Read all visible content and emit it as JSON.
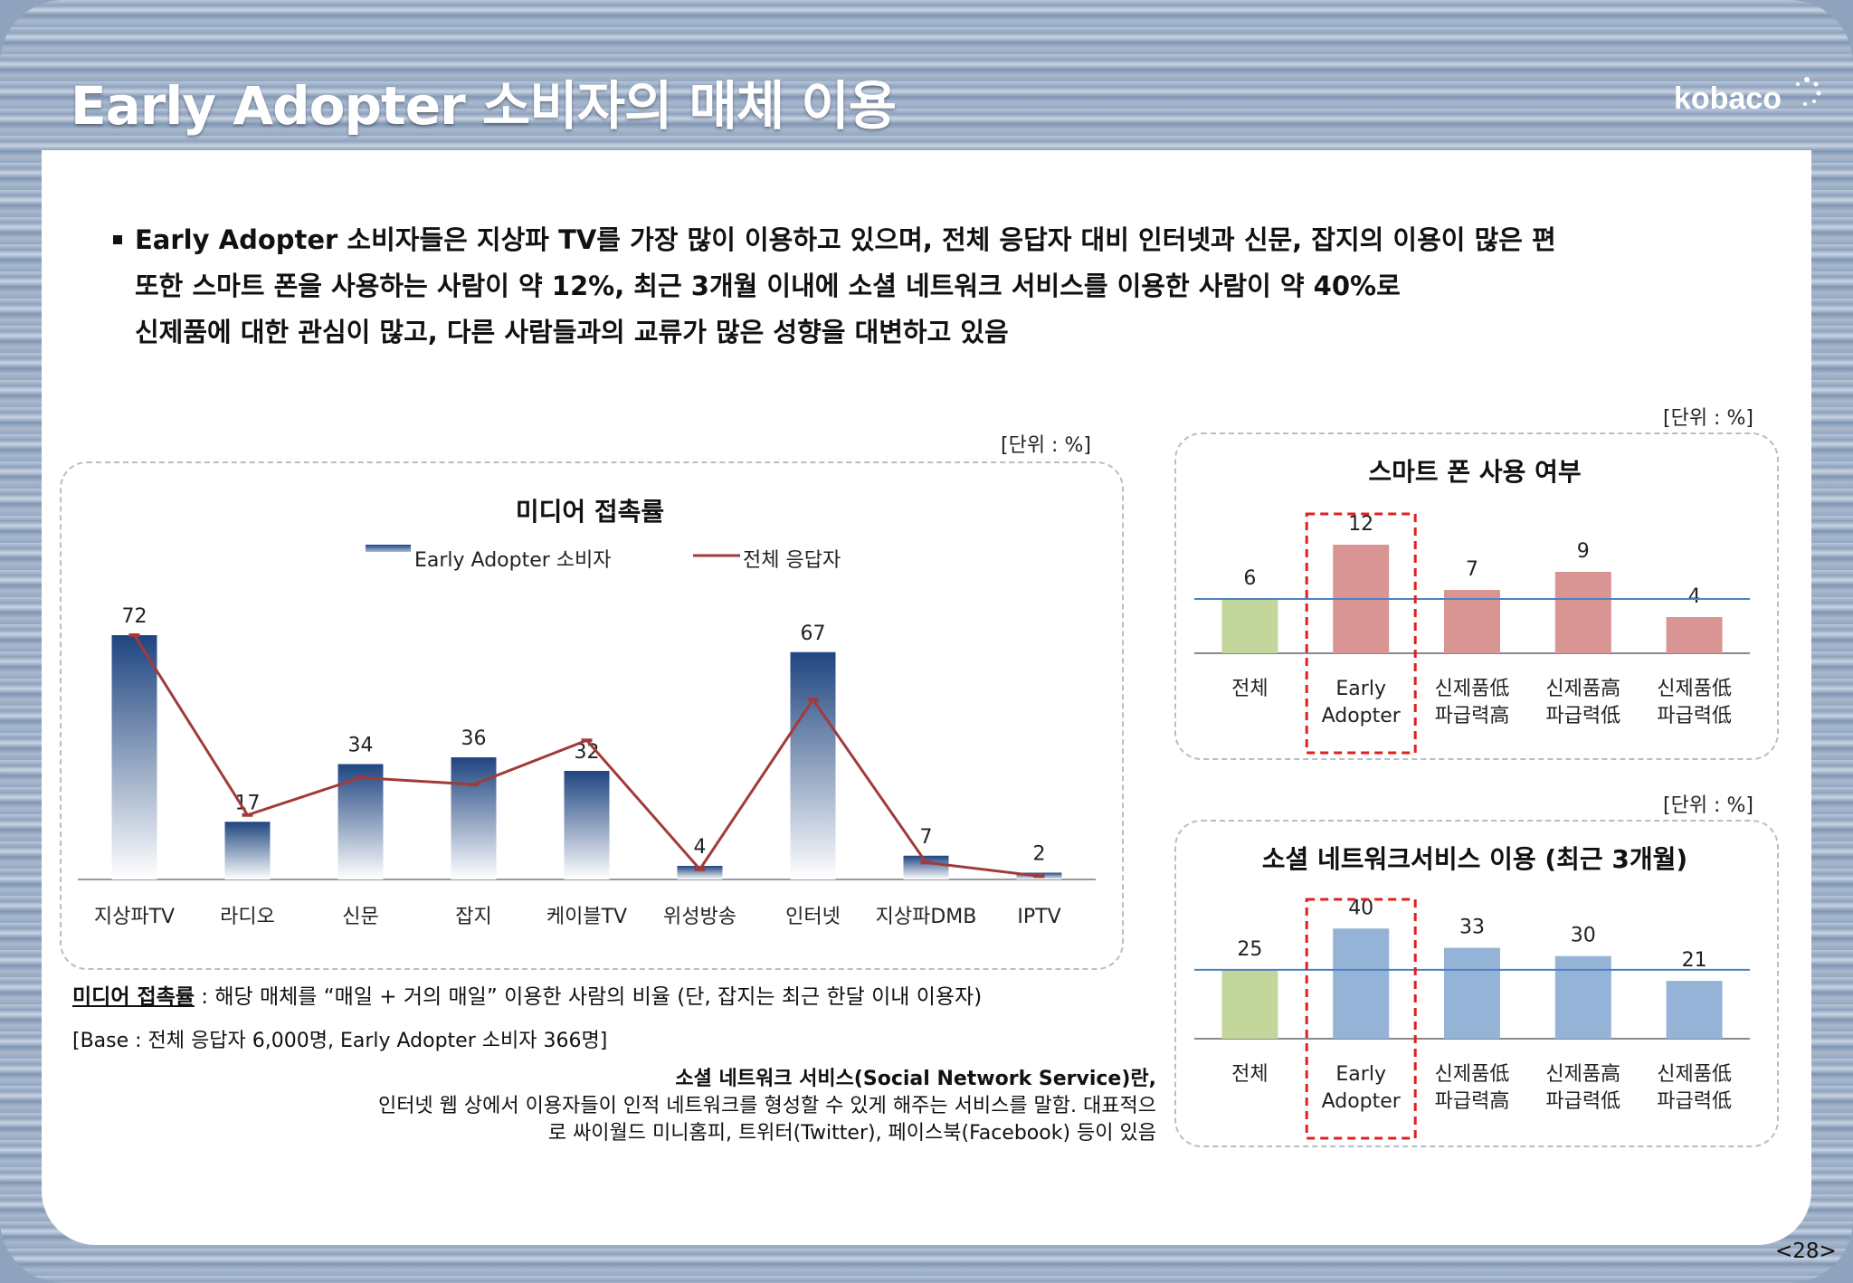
{
  "title": "Early Adopter 소비자의 매체 이용",
  "logo": "kobaco",
  "intro": [
    "Early Adopter 소비자들은 지상파 TV를 가장 많이 이용하고 있으며, 전체 응답자 대비 인터넷과 신문, 잡지의 이용이 많은 편",
    "또한 스마트 폰을 사용하는 사람이 약 12%, 최근 3개월 이내에 소셜 네트워크 서비스를 이용한 사람이 약 40%로",
    "신제품에 대한 관심이 많고, 다른 사람들과의 교류가 많은 성향을 대변하고 있음"
  ],
  "unit_label": "[단위 : %]",
  "chart_data": [
    {
      "type": "bar",
      "title": "미디어 접촉률",
      "categories": [
        "지상파TV",
        "라디오",
        "신문",
        "잡지",
        "케이블TV",
        "위성방송",
        "인터넷",
        "지상파DMB",
        "IPTV"
      ],
      "series": [
        {
          "name": "Early Adopter 소비자",
          "type": "bar",
          "values": [
            72,
            17,
            34,
            36,
            32,
            4,
            67,
            7,
            2
          ],
          "color": "#2e5490"
        },
        {
          "name": "전체 응답자",
          "type": "line",
          "values": [
            72,
            19,
            30,
            28,
            41,
            3,
            53,
            5,
            1
          ],
          "color": "#a23a3a"
        }
      ],
      "value_labels": [
        "72",
        "17",
        "34",
        "36",
        "32",
        "4",
        "67",
        "7",
        "2"
      ],
      "ylim": [
        0,
        80
      ],
      "grid": false,
      "legend": "top"
    },
    {
      "type": "bar",
      "title": "스마트 폰 사용 여부",
      "categories": [
        [
          "전체"
        ],
        [
          "Early",
          "Adopter"
        ],
        [
          "신제품低",
          "파급력高"
        ],
        [
          "신제품高",
          "파급력低"
        ],
        [
          "신제품低",
          "파급력低"
        ]
      ],
      "values": [
        6,
        12,
        7,
        9,
        4
      ],
      "reference_line": 6,
      "colors": [
        "#c3d69b",
        "#d99594",
        "#d99594",
        "#d99594",
        "#d99594"
      ],
      "highlight": "Early Adopter",
      "ylim": [
        0,
        14
      ]
    },
    {
      "type": "bar",
      "title": "소셜 네트워크서비스 이용 (최근 3개월)",
      "categories": [
        [
          "전체"
        ],
        [
          "Early",
          "Adopter"
        ],
        [
          "신제품低",
          "파급력高"
        ],
        [
          "신제품高",
          "파급력低"
        ],
        [
          "신제품低",
          "파급력低"
        ]
      ],
      "values": [
        25,
        40,
        33,
        30,
        21
      ],
      "reference_line": 25,
      "colors": [
        "#c3d69b",
        "#95b3d7",
        "#95b3d7",
        "#95b3d7",
        "#95b3d7"
      ],
      "highlight": "Early Adopter",
      "ylim": [
        0,
        46
      ]
    }
  ],
  "notes": {
    "definition_term": "미디어 접촉률",
    "definition_text": " : 해당 매체를 “매일 + 거의 매일” 이용한 사람의 비율 (단, 잡지는 최근 한달 이내 이용자)",
    "base": "[Base : 전체 응답자 6,000명, Early Adopter 소비자 366명]",
    "sns_title": "소셜 네트워크 서비스(Social Network Service)란,",
    "sns_line1": "인터넷 웹 상에서 이용자들이 인적 네트워크를 형성할 수 있게 해주는 서비스를 말함. 대표적으",
    "sns_line2": "로 싸이월드 미니홈피, 트위터(Twitter), 페이스북(Facebook) 등이 있음"
  },
  "page_number": "<28>"
}
